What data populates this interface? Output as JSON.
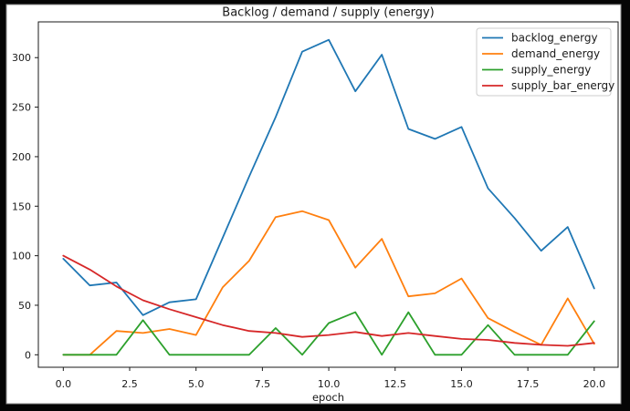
{
  "window": {
    "background_color": "#050505",
    "figure_background": "#ffffff"
  },
  "chart_data": {
    "type": "line",
    "title": "Backlog / demand / supply (energy)",
    "xlabel": "epoch",
    "ylabel": "",
    "grid": false,
    "legend_position": "upper right",
    "x": [
      0,
      1,
      2,
      3,
      4,
      5,
      6,
      7,
      8,
      9,
      10,
      11,
      12,
      13,
      14,
      15,
      16,
      17,
      18,
      19,
      20
    ],
    "series": [
      {
        "name": "backlog_energy",
        "color": "#1f77b4",
        "values": [
          97,
          70,
          73,
          40,
          53,
          56,
          118,
          180,
          240,
          306,
          318,
          266,
          303,
          228,
          218,
          230,
          168,
          138,
          105,
          129,
          67
        ]
      },
      {
        "name": "demand_energy",
        "color": "#ff7f0e",
        "values": [
          0,
          0,
          24,
          22,
          26,
          20,
          68,
          95,
          139,
          145,
          136,
          88,
          117,
          59,
          62,
          77,
          37,
          23,
          10,
          57,
          11
        ]
      },
      {
        "name": "supply_energy",
        "color": "#2ca02c",
        "values": [
          0,
          0,
          0,
          35,
          0,
          0,
          0,
          0,
          27,
          0,
          32,
          43,
          0,
          43,
          0,
          0,
          30,
          0,
          0,
          0,
          34
        ]
      },
      {
        "name": "supply_bar_energy",
        "color": "#d62728",
        "values": [
          100,
          86,
          69,
          55,
          46,
          38,
          30,
          24,
          22,
          18,
          20,
          23,
          19,
          22,
          19,
          16,
          15,
          12,
          10,
          9,
          12
        ]
      }
    ],
    "xlim": [
      -0.94,
      20.9
    ],
    "ylim": [
      -12.6,
      336.1
    ],
    "x_ticks": {
      "values": [
        0,
        2.5,
        5,
        7.5,
        10,
        12.5,
        15,
        17.5,
        20
      ],
      "labels": [
        "0.0",
        "2.5",
        "5.0",
        "7.5",
        "10.0",
        "12.5",
        "15.0",
        "17.5",
        "20.0"
      ]
    },
    "y_ticks": {
      "values": [
        0,
        50,
        100,
        150,
        200,
        250,
        300
      ],
      "labels": [
        "0",
        "50",
        "100",
        "150",
        "200",
        "250",
        "300"
      ]
    }
  }
}
